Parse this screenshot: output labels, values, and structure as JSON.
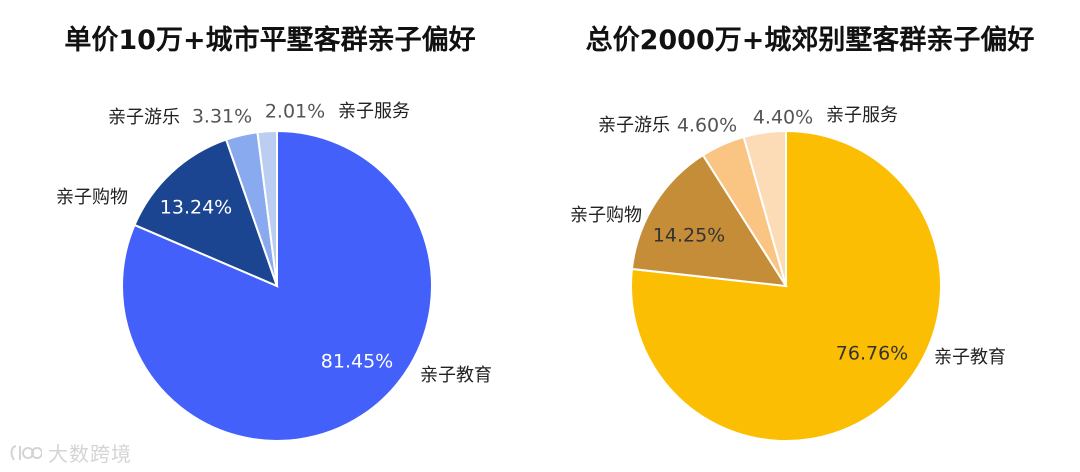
{
  "chart_data": [
    {
      "type": "pie",
      "title": "单价10万+城市平墅客群亲子偏好",
      "start_angle_deg": 0,
      "direction": "clockwise",
      "categories": [
        "亲子教育",
        "亲子购物",
        "亲子游乐",
        "亲子服务"
      ],
      "values": [
        81.45,
        13.24,
        3.31,
        2.01
      ],
      "value_labels": [
        "81.45%",
        "13.24%",
        "3.31%",
        "2.01%"
      ],
      "colors": [
        "#4361fa",
        "#1c4591",
        "#89aaee",
        "#bccdf2"
      ],
      "value_label_colors": [
        "#ffffff",
        "#ffffff",
        "#555555",
        "#555555"
      ]
    },
    {
      "type": "pie",
      "title": "总价2000万+城郊别墅客群亲子偏好",
      "start_angle_deg": 0,
      "direction": "clockwise",
      "categories": [
        "亲子教育",
        "亲子购物",
        "亲子游乐",
        "亲子服务"
      ],
      "values": [
        76.76,
        14.25,
        4.6,
        4.4
      ],
      "value_labels": [
        "76.76%",
        "14.25%",
        "4.60%",
        "4.40%"
      ],
      "colors": [
        "#fbbe02",
        "#c58d37",
        "#fac582",
        "#fcdcb6"
      ],
      "value_label_colors": [
        "#333333",
        "#333333",
        "#555555",
        "#555555"
      ]
    }
  ],
  "watermark": {
    "text": "大数跨境",
    "icon": "brand-logo-icon"
  }
}
